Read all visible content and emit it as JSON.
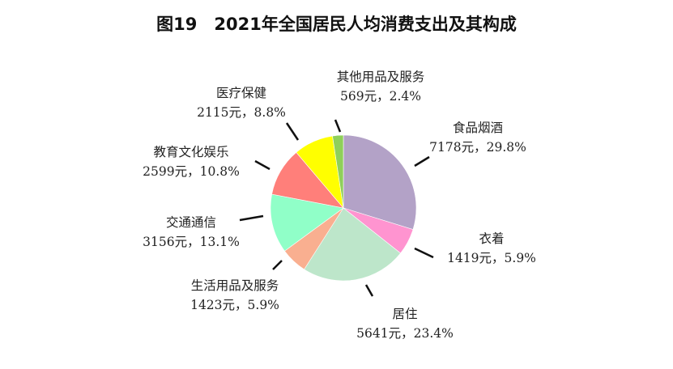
{
  "chart_data": {
    "type": "pie",
    "title": "图19　2021年全国居民人均消费支出及其构成",
    "start": "12 o'clock, clockwise",
    "slices": [
      {
        "name": "食品烟酒",
        "value": 7178,
        "unit": "元",
        "percent": 29.8,
        "label": "7178元，29.8%",
        "color": "#B3A2C7"
      },
      {
        "name": "衣着",
        "value": 1419,
        "unit": "元",
        "percent": 5.9,
        "label": "1419元，5.9%",
        "color": "#FF94D0"
      },
      {
        "name": "居住",
        "value": 5641,
        "unit": "元",
        "percent": 23.4,
        "label": "5641元，23.4%",
        "color": "#BDE6CA"
      },
      {
        "name": "生活用品及服务",
        "value": 1423,
        "unit": "元",
        "percent": 5.9,
        "label": "1423元，5.9%",
        "color": "#F9AF90"
      },
      {
        "name": "交通通信",
        "value": 3156,
        "unit": "元",
        "percent": 13.1,
        "label": "3156元，13.1%",
        "color": "#90FFC8"
      },
      {
        "name": "教育文化娱乐",
        "value": 2599,
        "unit": "元",
        "percent": 10.8,
        "label": "2599元，10.8%",
        "color": "#FF7F7A"
      },
      {
        "name": "医疗保健",
        "value": 2115,
        "unit": "元",
        "percent": 8.8,
        "label": "2115元，8.8%",
        "color": "#FFFF00"
      },
      {
        "name": "其他用品及服务",
        "value": 569,
        "unit": "元",
        "percent": 2.4,
        "label": "569元，2.4%",
        "color": "#8FD05A"
      }
    ]
  }
}
